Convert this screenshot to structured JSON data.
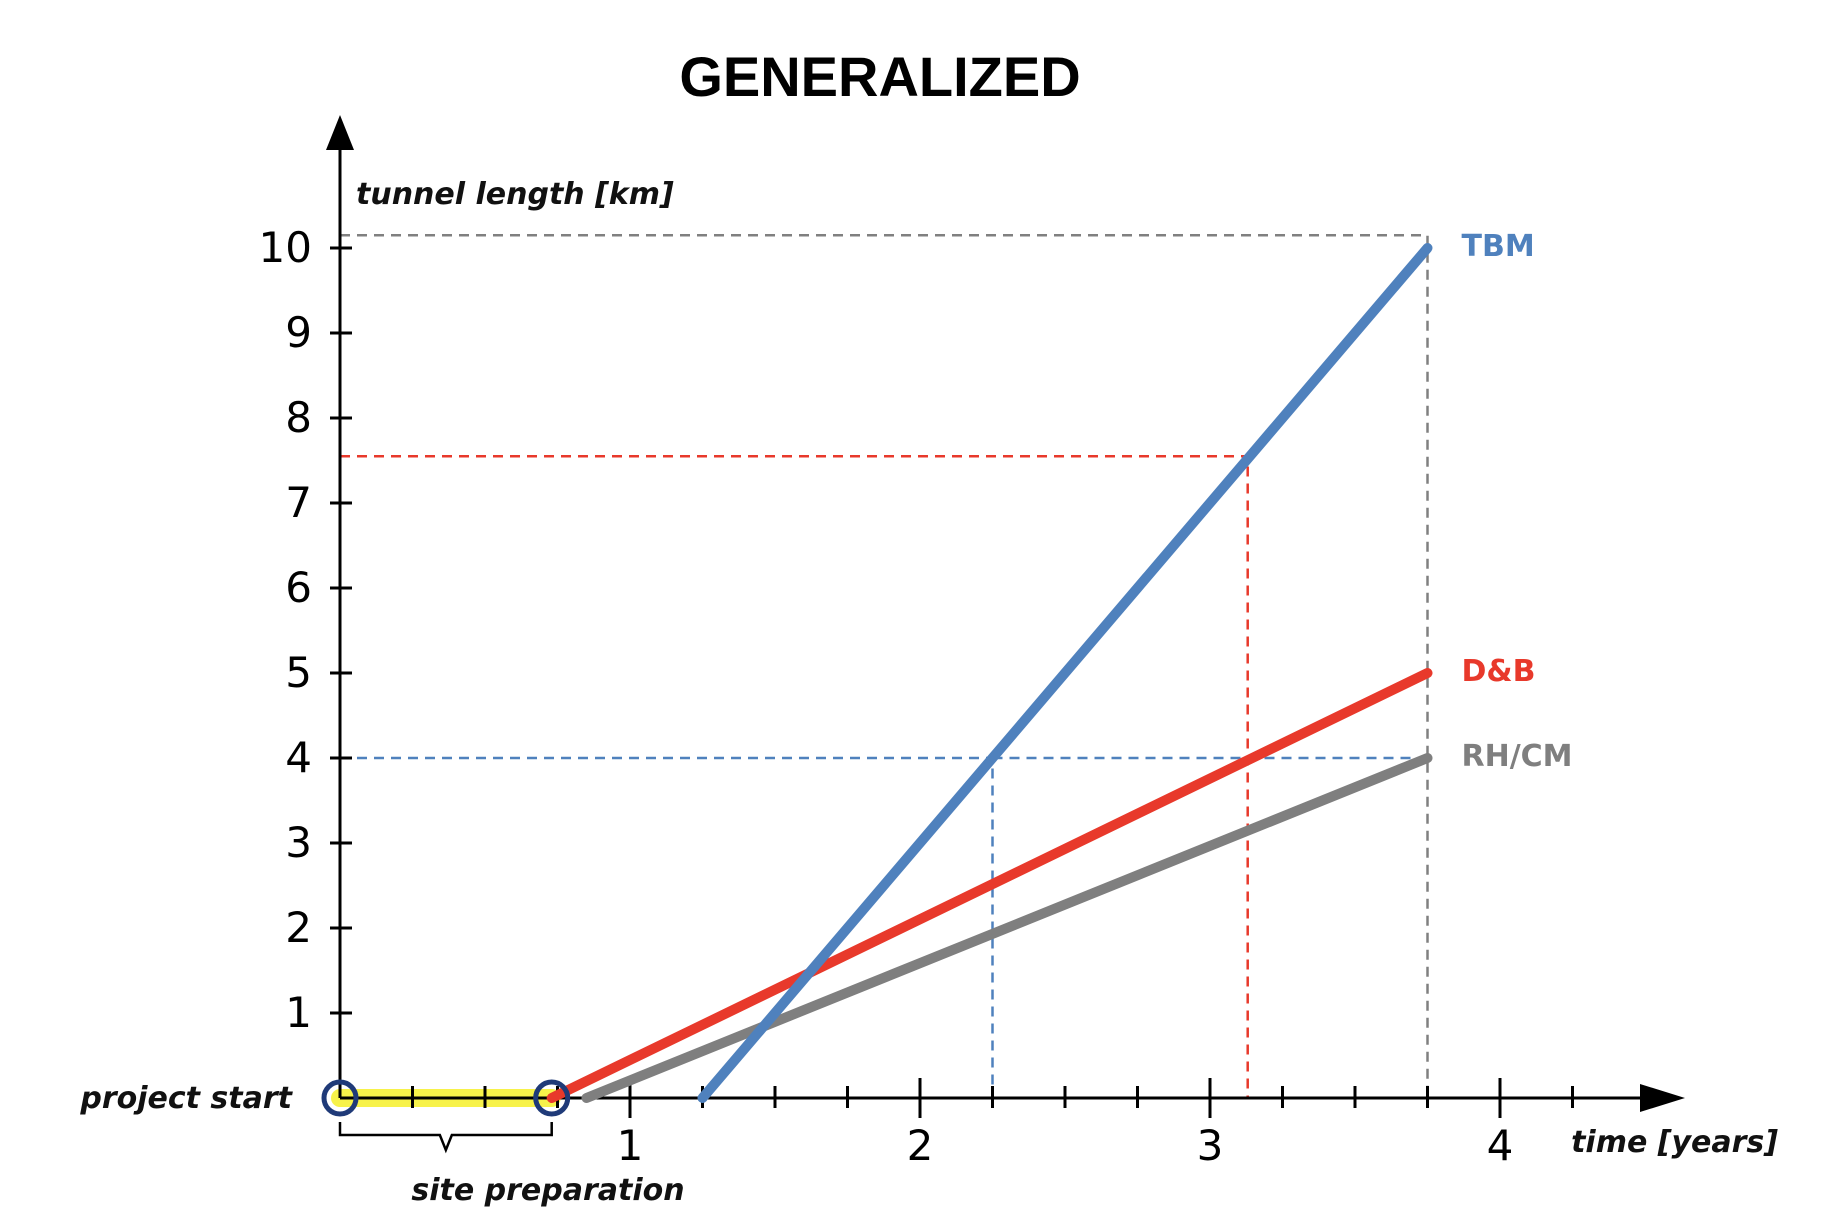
{
  "chart_data": {
    "type": "line",
    "title": "GENERALIZED",
    "xlabel": "time [years]",
    "ylabel": "tunnel length [km]",
    "xlim": [
      0,
      4.6
    ],
    "ylim": [
      0,
      10.9
    ],
    "x_ticks": [
      1,
      2,
      3,
      4
    ],
    "y_ticks": [
      1,
      2,
      3,
      4,
      5,
      6,
      7,
      8,
      9,
      10
    ],
    "x_minor_step": 0.25,
    "grid": false,
    "annotations": {
      "project_start": "project start",
      "site_preparation": "site preparation",
      "site_preparation_range": [
        0,
        0.73
      ],
      "site_preparation_color": "#f7f24a"
    },
    "series": [
      {
        "name": "TBM",
        "color": "#4f81bd",
        "x": [
          1.25,
          3.75
        ],
        "y": [
          0,
          10
        ]
      },
      {
        "name": "D&B",
        "color": "#e8392b",
        "x": [
          0.73,
          3.75
        ],
        "y": [
          0,
          5
        ]
      },
      {
        "name": "RH/CM",
        "color": "#7f7f7f",
        "x": [
          0.85,
          3.75
        ],
        "y": [
          0,
          4
        ]
      }
    ],
    "reference_lines": [
      {
        "color": "#808080",
        "points": [
          [
            0,
            10.15
          ],
          [
            3.75,
            10.15
          ],
          [
            3.75,
            0
          ]
        ]
      },
      {
        "color": "#e8392b",
        "points": [
          [
            0,
            7.55
          ],
          [
            3.13,
            7.55
          ],
          [
            3.13,
            0
          ]
        ]
      },
      {
        "color": "#4f81bd",
        "points": [
          [
            0,
            4
          ],
          [
            2.25,
            4
          ],
          [
            2.25,
            0
          ]
        ]
      },
      {
        "color": "#4f81bd",
        "points": [
          [
            2.25,
            4
          ],
          [
            3.75,
            4
          ]
        ]
      }
    ]
  }
}
